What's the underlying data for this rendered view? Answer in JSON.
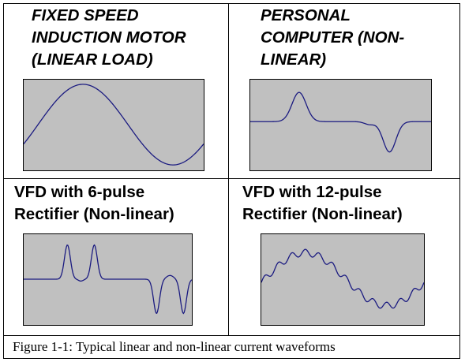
{
  "panels": [
    {
      "title": "FIXED SPEED\nINDUCTION MOTOR\n(LINEAR LOAD)",
      "waveform": "sine"
    },
    {
      "title": "PERSONAL\nCOMPUTER (NON-\nLINEAR)",
      "waveform": "pc"
    },
    {
      "title": "VFD with 6-pulse\nRectifier (Non-linear)",
      "waveform": "vfd6"
    },
    {
      "title": "VFD with 12-pulse\nRectifier (Non-linear)",
      "waveform": "vfd12"
    }
  ],
  "caption": "Figure 1-1:  Typical linear and non-linear current waveforms",
  "colors": {
    "waveform": "#1a1a80",
    "plot_background": "#c0c0c0"
  }
}
